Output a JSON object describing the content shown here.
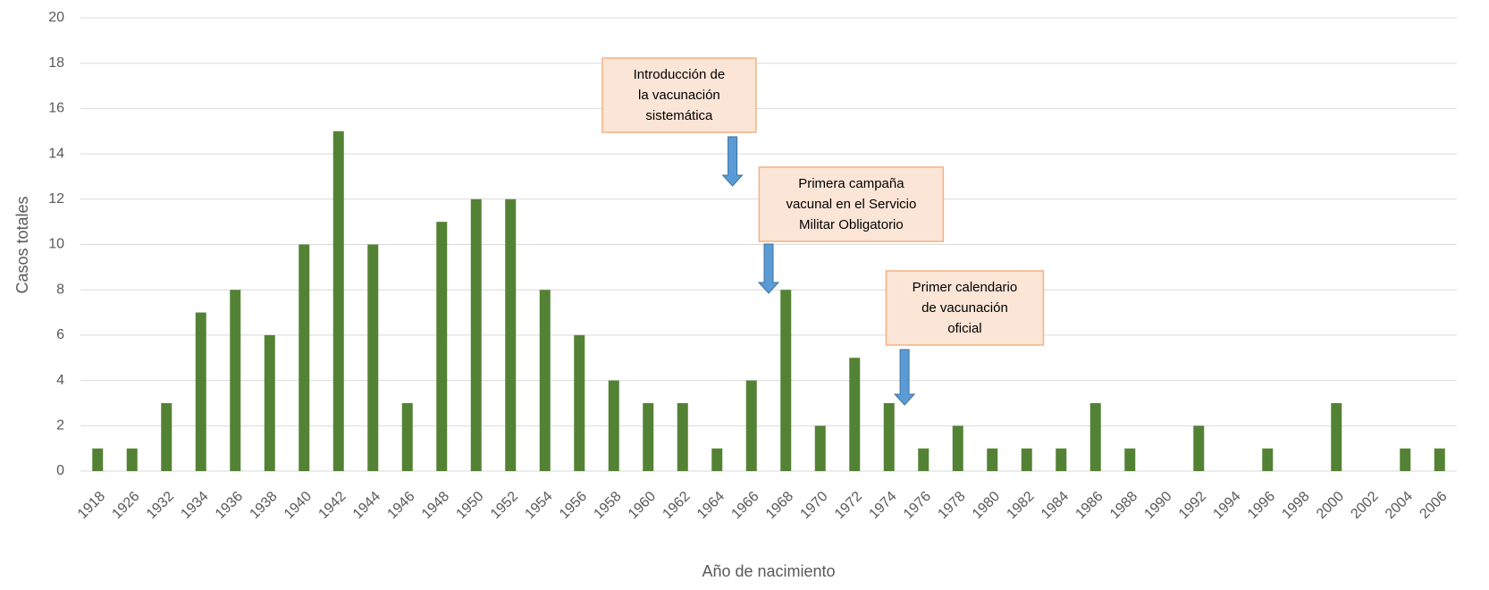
{
  "chart_data": {
    "type": "bar",
    "xlabel": "Año de nacimiento",
    "ylabel": "Casos totales",
    "categories": [
      "1918",
      "1926",
      "1932",
      "1934",
      "1936",
      "1938",
      "1940",
      "1942",
      "1944",
      "1946",
      "1948",
      "1950",
      "1952",
      "1954",
      "1956",
      "1958",
      "1960",
      "1962",
      "1964",
      "1966",
      "1968",
      "1970",
      "1972",
      "1974",
      "1976",
      "1978",
      "1980",
      "1982",
      "1984",
      "1986",
      "1988",
      "1990",
      "1992",
      "1994",
      "1996",
      "1998",
      "2000",
      "2002",
      "2004",
      "2006"
    ],
    "values": [
      1,
      1,
      3,
      7,
      8,
      6,
      10,
      15,
      10,
      3,
      11,
      12,
      12,
      8,
      6,
      4,
      3,
      3,
      1,
      4,
      8,
      2,
      5,
      3,
      1,
      2,
      1,
      1,
      1,
      3,
      1,
      0,
      2,
      0,
      1,
      0,
      3,
      0,
      1,
      1
    ],
    "color": "#548235",
    "ylim": [
      0,
      20
    ],
    "yticks": [
      0,
      2,
      4,
      6,
      8,
      10,
      12,
      14,
      16,
      18,
      20
    ],
    "grid": true,
    "annotations": [
      {
        "lines": [
          "Introducción de",
          "la vacunación",
          "sistemática"
        ]
      },
      {
        "lines": [
          "Primera campaña",
          "vacunal en el Servicio",
          "Militar Obligatorio"
        ]
      },
      {
        "lines": [
          "Primer calendario",
          "de vacunación",
          "oficial"
        ]
      }
    ]
  }
}
